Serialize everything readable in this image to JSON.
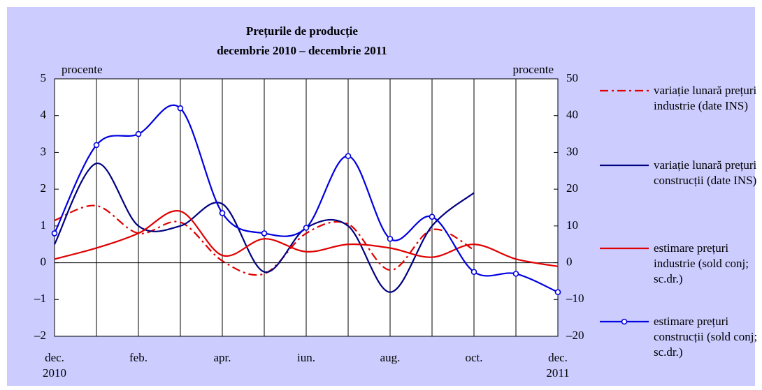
{
  "chart_data": {
    "type": "line",
    "title": "Prețurile de producție",
    "subtitle": "decembrie 2010 – decembrie 2011",
    "y_label": "procente",
    "y2_label": "procente",
    "categories": [
      "dec. 2010",
      null,
      "feb.",
      null,
      "apr.",
      null,
      "iun.",
      null,
      "aug.",
      null,
      "oct.",
      null,
      "dec. 2011"
    ],
    "ylim": [
      -2,
      5
    ],
    "yticks": [
      {
        "value": -2,
        "label": "–2"
      },
      {
        "value": -1,
        "label": "–1"
      },
      0,
      1,
      2,
      3,
      4,
      5
    ],
    "y2lim": [
      -20,
      50
    ],
    "y2ticks": [
      {
        "value": -20,
        "label": "–20"
      },
      {
        "value": -10,
        "label": "–10"
      },
      0,
      10,
      20,
      30,
      40,
      50
    ],
    "grid": true,
    "legend": "right",
    "series": [
      {
        "name": "variație lunară prețuri industrie (date INS)",
        "color": "#e00000",
        "style": "dashdot",
        "values": [
          1.15,
          1.55,
          0.8,
          1.1,
          0.05,
          -0.3,
          0.8,
          1.05,
          -0.2,
          0.9,
          0.35,
          null,
          null
        ]
      },
      {
        "name": "variație lunară prețuri construcții (date INS)",
        "color": "#000080",
        "style": "solid",
        "values": [
          0.5,
          2.7,
          1.0,
          1.0,
          1.6,
          -0.25,
          0.95,
          1.0,
          -0.8,
          1.0,
          1.9,
          null,
          null
        ]
      },
      {
        "name": "estimare prețuri industrie (sold conj; sc.dr.)",
        "color": "#e00000",
        "style": "solid",
        "axis": "y2",
        "values": [
          1,
          4,
          8,
          14,
          2,
          6.5,
          3,
          5,
          4,
          1.5,
          5,
          1,
          -1
        ]
      },
      {
        "name": "estimare prețuri construcții (sold conj; sc.dr.)",
        "color": "#0000e0",
        "style": "markers",
        "axis": "y2",
        "values": [
          8,
          32,
          35,
          42,
          13.5,
          8,
          9.5,
          29,
          6.5,
          12.5,
          -2.5,
          -3,
          -8
        ]
      }
    ]
  }
}
